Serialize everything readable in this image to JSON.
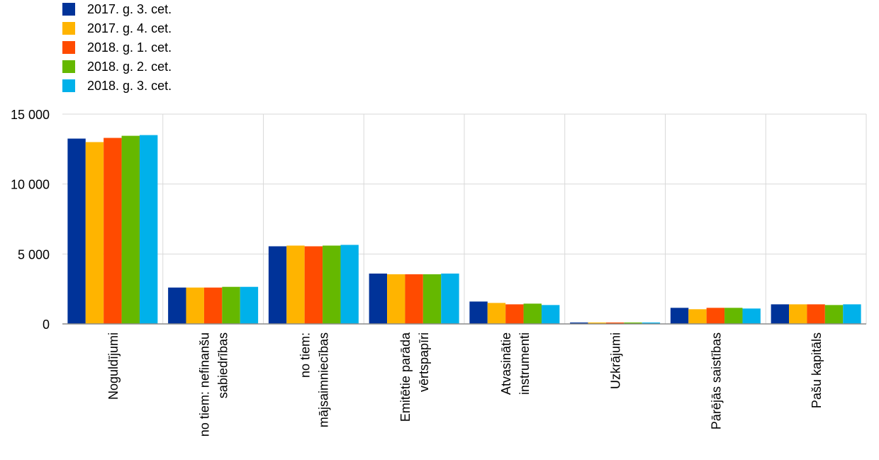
{
  "chart_data": {
    "type": "bar",
    "title": "",
    "xlabel": "",
    "ylabel": "",
    "ylim": [
      0,
      15000
    ],
    "y_ticks": [
      "0",
      "5 000",
      "10 000",
      "15 000"
    ],
    "y_tick_values": [
      0,
      5000,
      10000,
      15000
    ],
    "grid": true,
    "legend_position": "top-left",
    "categories": [
      [
        "Noguldījumi"
      ],
      [
        "no tiem: nefinanšu",
        "sabiedrības"
      ],
      [
        "no tiem:",
        "mājsaimniecības"
      ],
      [
        "Emitētie parāda",
        "vērtspapīri"
      ],
      [
        "Atvasinātie",
        "instrumenti"
      ],
      [
        "Uzkrājumi"
      ],
      [
        "Pārējās saistības"
      ],
      [
        "Pašu kapitāls"
      ]
    ],
    "series": [
      {
        "name": "2017. g. 3. cet.",
        "color": "#003399",
        "values": [
          13250,
          2600,
          5550,
          3600,
          1600,
          100,
          1150,
          1400
        ]
      },
      {
        "name": "2017. g. 4. cet.",
        "color": "#FFB400",
        "values": [
          13000,
          2600,
          5600,
          3550,
          1500,
          100,
          1050,
          1400
        ]
      },
      {
        "name": "2018. g. 1. cet.",
        "color": "#FF4B00",
        "values": [
          13300,
          2600,
          5550,
          3550,
          1400,
          100,
          1150,
          1400
        ]
      },
      {
        "name": "2018. g. 2. cet.",
        "color": "#65B800",
        "values": [
          13450,
          2650,
          5600,
          3550,
          1450,
          100,
          1150,
          1350
        ]
      },
      {
        "name": "2018. g. 3. cet.",
        "color": "#00B1EA",
        "values": [
          13500,
          2650,
          5650,
          3600,
          1350,
          100,
          1100,
          1400
        ]
      }
    ]
  }
}
